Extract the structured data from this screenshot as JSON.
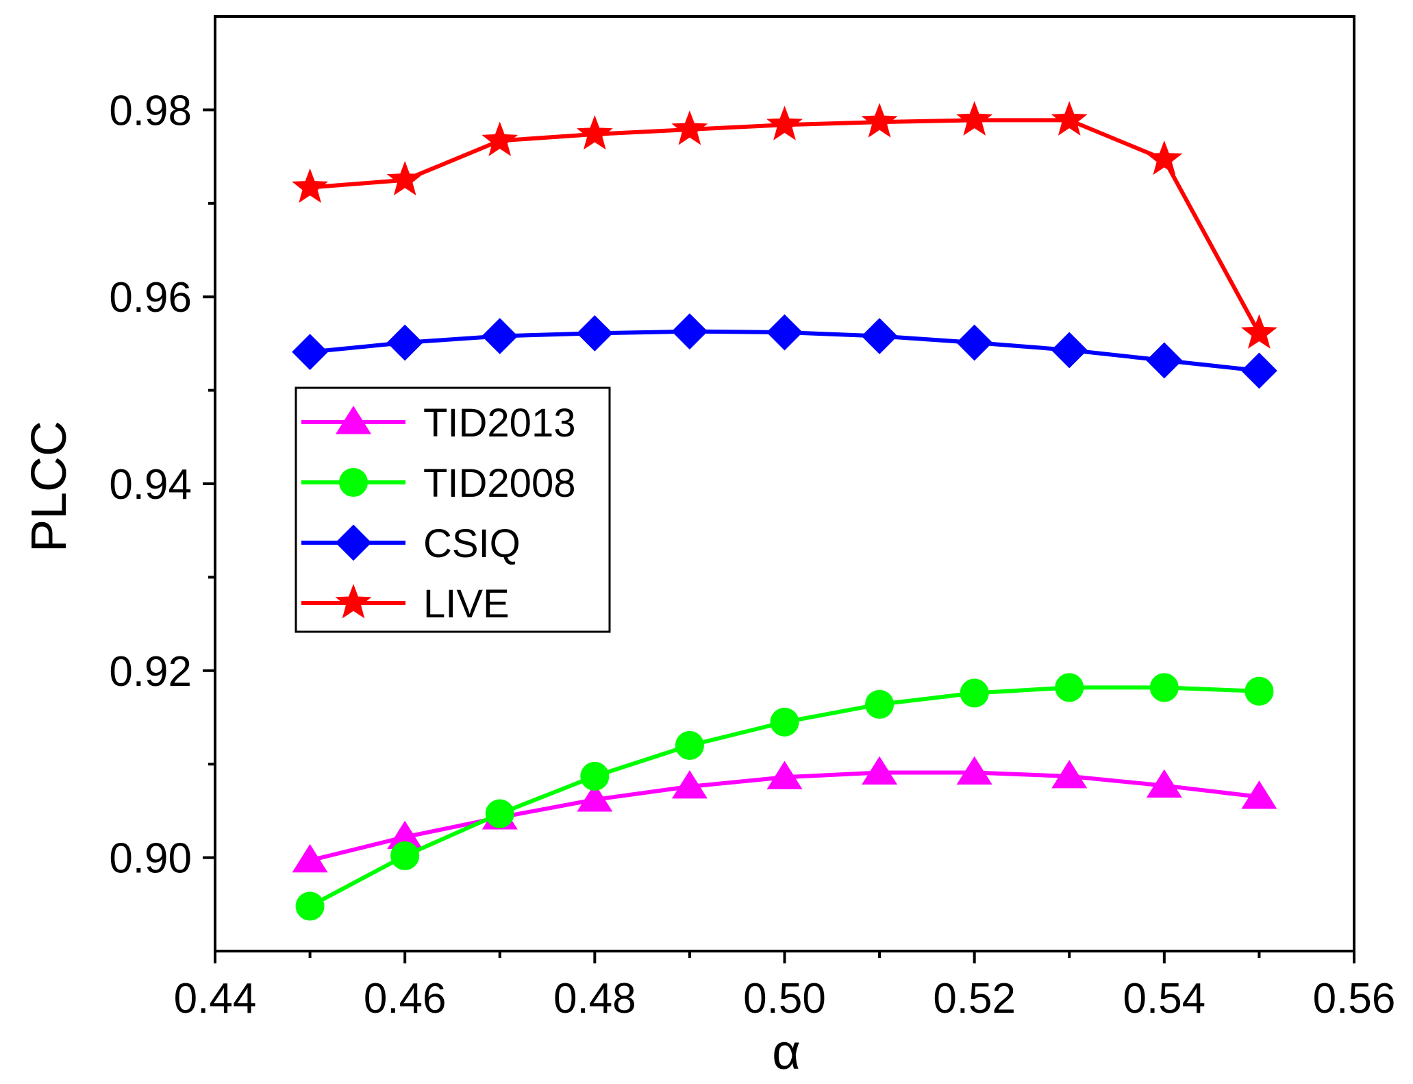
{
  "chart_data": {
    "type": "line",
    "title": "",
    "xlabel": "α",
    "ylabel": "PLCC",
    "xlim": [
      0.44,
      0.56
    ],
    "ylim": [
      0.89,
      0.99
    ],
    "xticks": [
      0.44,
      0.46,
      0.48,
      0.5,
      0.52,
      0.54,
      0.56
    ],
    "xtick_labels": [
      "0.44",
      "0.46",
      "0.48",
      "0.50",
      "0.52",
      "0.54",
      "0.56"
    ],
    "yticks": [
      0.9,
      0.92,
      0.94,
      0.96,
      0.98
    ],
    "ytick_labels": [
      "0.90",
      "0.92",
      "0.94",
      "0.96",
      "0.98"
    ],
    "grid": false,
    "legend_position": "center-left",
    "x": [
      0.45,
      0.46,
      0.47,
      0.48,
      0.49,
      0.5,
      0.51,
      0.52,
      0.53,
      0.54,
      0.55
    ],
    "series": [
      {
        "name": "TID2013",
        "color": "#ff00ff",
        "marker": "triangle",
        "values": [
          0.8997,
          0.9022,
          0.9043,
          0.9062,
          0.9076,
          0.9086,
          0.9091,
          0.9091,
          0.9087,
          0.9077,
          0.9065
        ]
      },
      {
        "name": "TID2008",
        "color": "#00ff00",
        "marker": "circle",
        "values": [
          0.8948,
          0.9002,
          0.9047,
          0.9087,
          0.912,
          0.9145,
          0.9164,
          0.9176,
          0.9182,
          0.9182,
          0.9178
        ]
      },
      {
        "name": "CSIQ",
        "color": "#0000ff",
        "marker": "diamond",
        "values": [
          0.9541,
          0.9551,
          0.9558,
          0.9561,
          0.9563,
          0.9562,
          0.9558,
          0.9551,
          0.9543,
          0.9532,
          0.9521
        ]
      },
      {
        "name": "LIVE",
        "color": "#ff0000",
        "marker": "star",
        "values": [
          0.9717,
          0.9725,
          0.9767,
          0.9774,
          0.9779,
          0.9784,
          0.9787,
          0.9789,
          0.9789,
          0.9747,
          0.9561
        ]
      }
    ]
  }
}
